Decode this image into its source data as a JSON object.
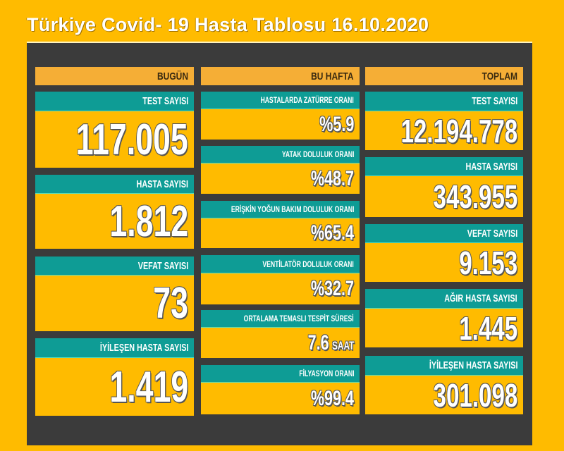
{
  "title": "Türkiye Covid- 19 Hasta Tablosu 16.10.2020",
  "colors": {
    "background": "#FFBB00",
    "panel": "#3B3B3B",
    "header": "#F5AE36",
    "label": "#0E9C95"
  },
  "columns": [
    {
      "header": "BUGÜN",
      "items": [
        {
          "label": "TEST SAYISI",
          "value": "117.005"
        },
        {
          "label": "HASTA SAYISI",
          "value": "1.812"
        },
        {
          "label": "VEFAT SAYISI",
          "value": "73"
        },
        {
          "label": "İYİLEŞEN HASTA SAYISI",
          "value": "1.419"
        }
      ]
    },
    {
      "header": "BU HAFTA",
      "items": [
        {
          "label": "HASTALARDA ZATÜRRE ORANI",
          "value": "%5.9"
        },
        {
          "label": "YATAK DOLULUK ORANI",
          "value": "%48.7"
        },
        {
          "label": "ERİŞKİN YOĞUN BAKIM DOLULUK ORANI",
          "value": "%65.4"
        },
        {
          "label": "VENTİLATÖR DOLULUK ORANI",
          "value": "%32.7"
        },
        {
          "label": "ORTALAMA TEMASLI TESPİT SÜRESİ",
          "value": "7.6",
          "unit": "SAAT"
        },
        {
          "label": "FİLYASYON ORANI",
          "value": "%99.4"
        }
      ]
    },
    {
      "header": "TOPLAM",
      "items": [
        {
          "label": "TEST SAYISI",
          "value": "12.194.778"
        },
        {
          "label": "HASTA SAYISI",
          "value": "343.955"
        },
        {
          "label": "VEFAT SAYISI",
          "value": "9.153"
        },
        {
          "label": "AĞIR HASTA SAYISI",
          "value": "1.445"
        },
        {
          "label": "İYİLEŞEN HASTA SAYISI",
          "value": "301.098"
        }
      ]
    }
  ]
}
